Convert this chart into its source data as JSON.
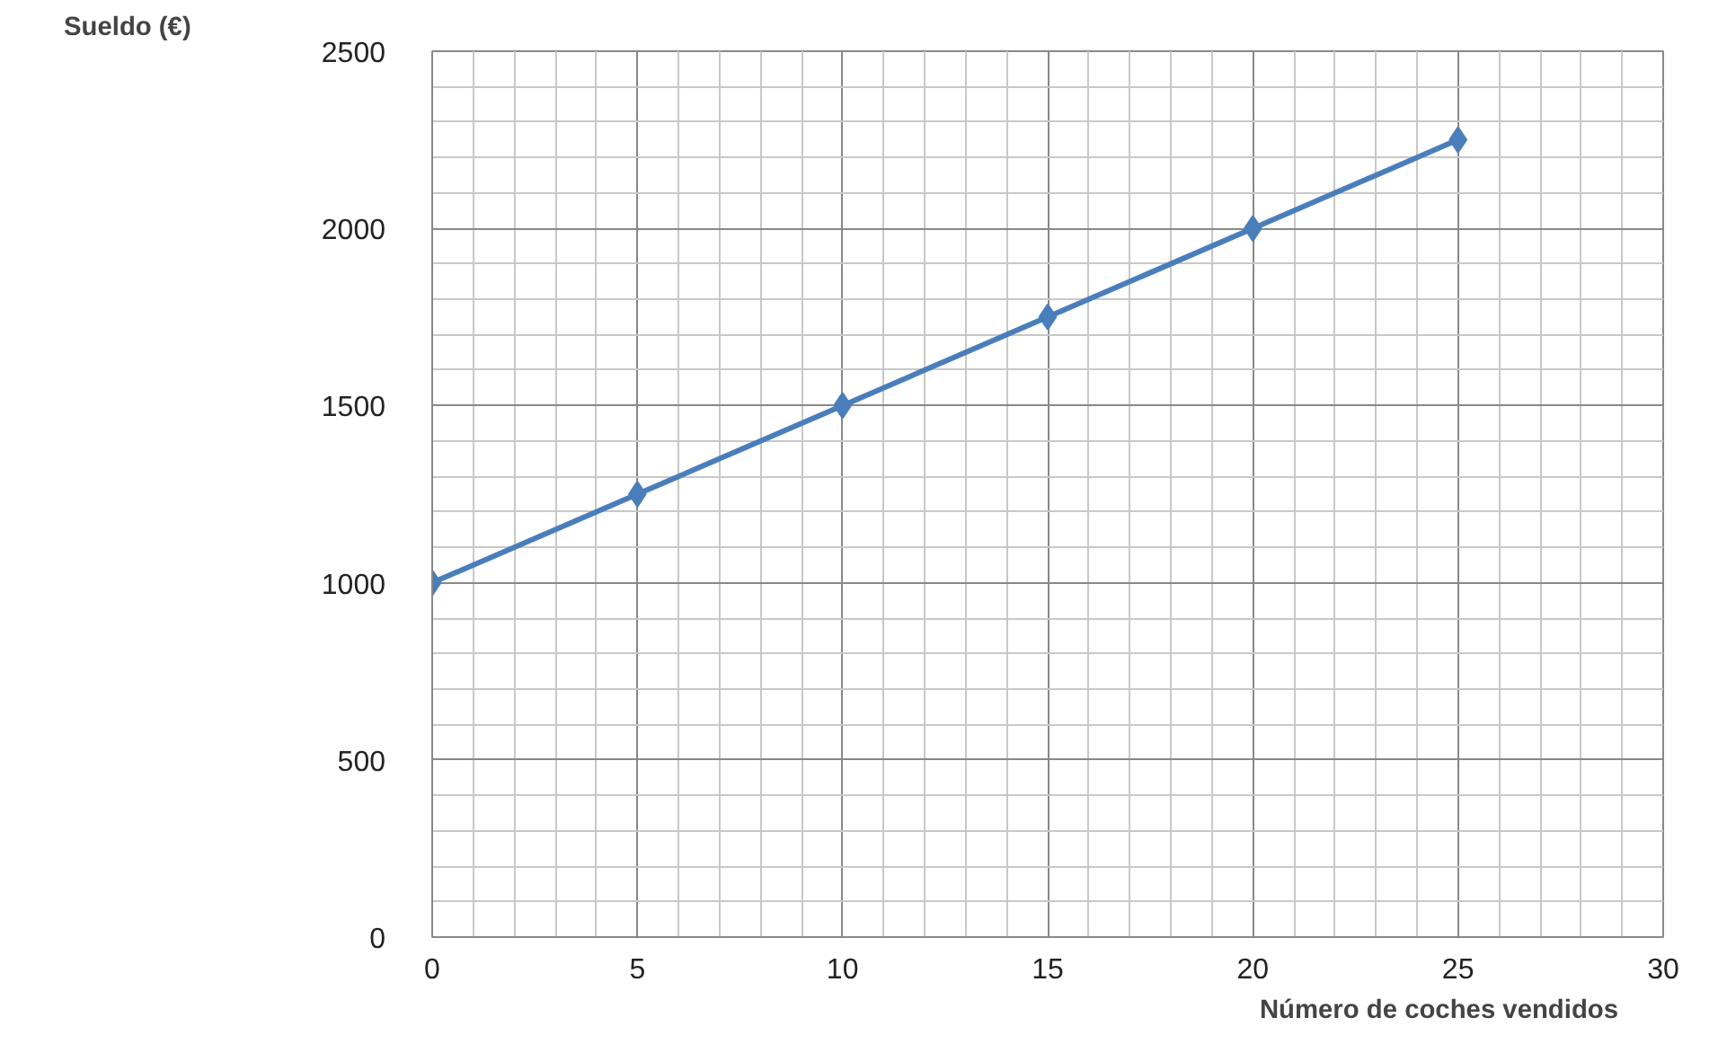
{
  "chart_data": {
    "type": "line",
    "xlabel": "Número de coches vendidos",
    "ylabel": "Sueldo (€)",
    "x": [
      0,
      5,
      10,
      15,
      20,
      25
    ],
    "series": [
      {
        "color": "#4a7ebb",
        "values": [
          1000,
          1250,
          1500,
          1750,
          2000,
          2250
        ]
      }
    ],
    "xlim": [
      0,
      30
    ],
    "xticks": [
      0,
      5,
      10,
      15,
      20,
      25,
      30
    ],
    "ylim": [
      0,
      2500
    ],
    "yticks": [
      0,
      500,
      1000,
      1500,
      2000,
      2500
    ],
    "grid": true,
    "marker": "diamond",
    "line_style": "solid"
  }
}
